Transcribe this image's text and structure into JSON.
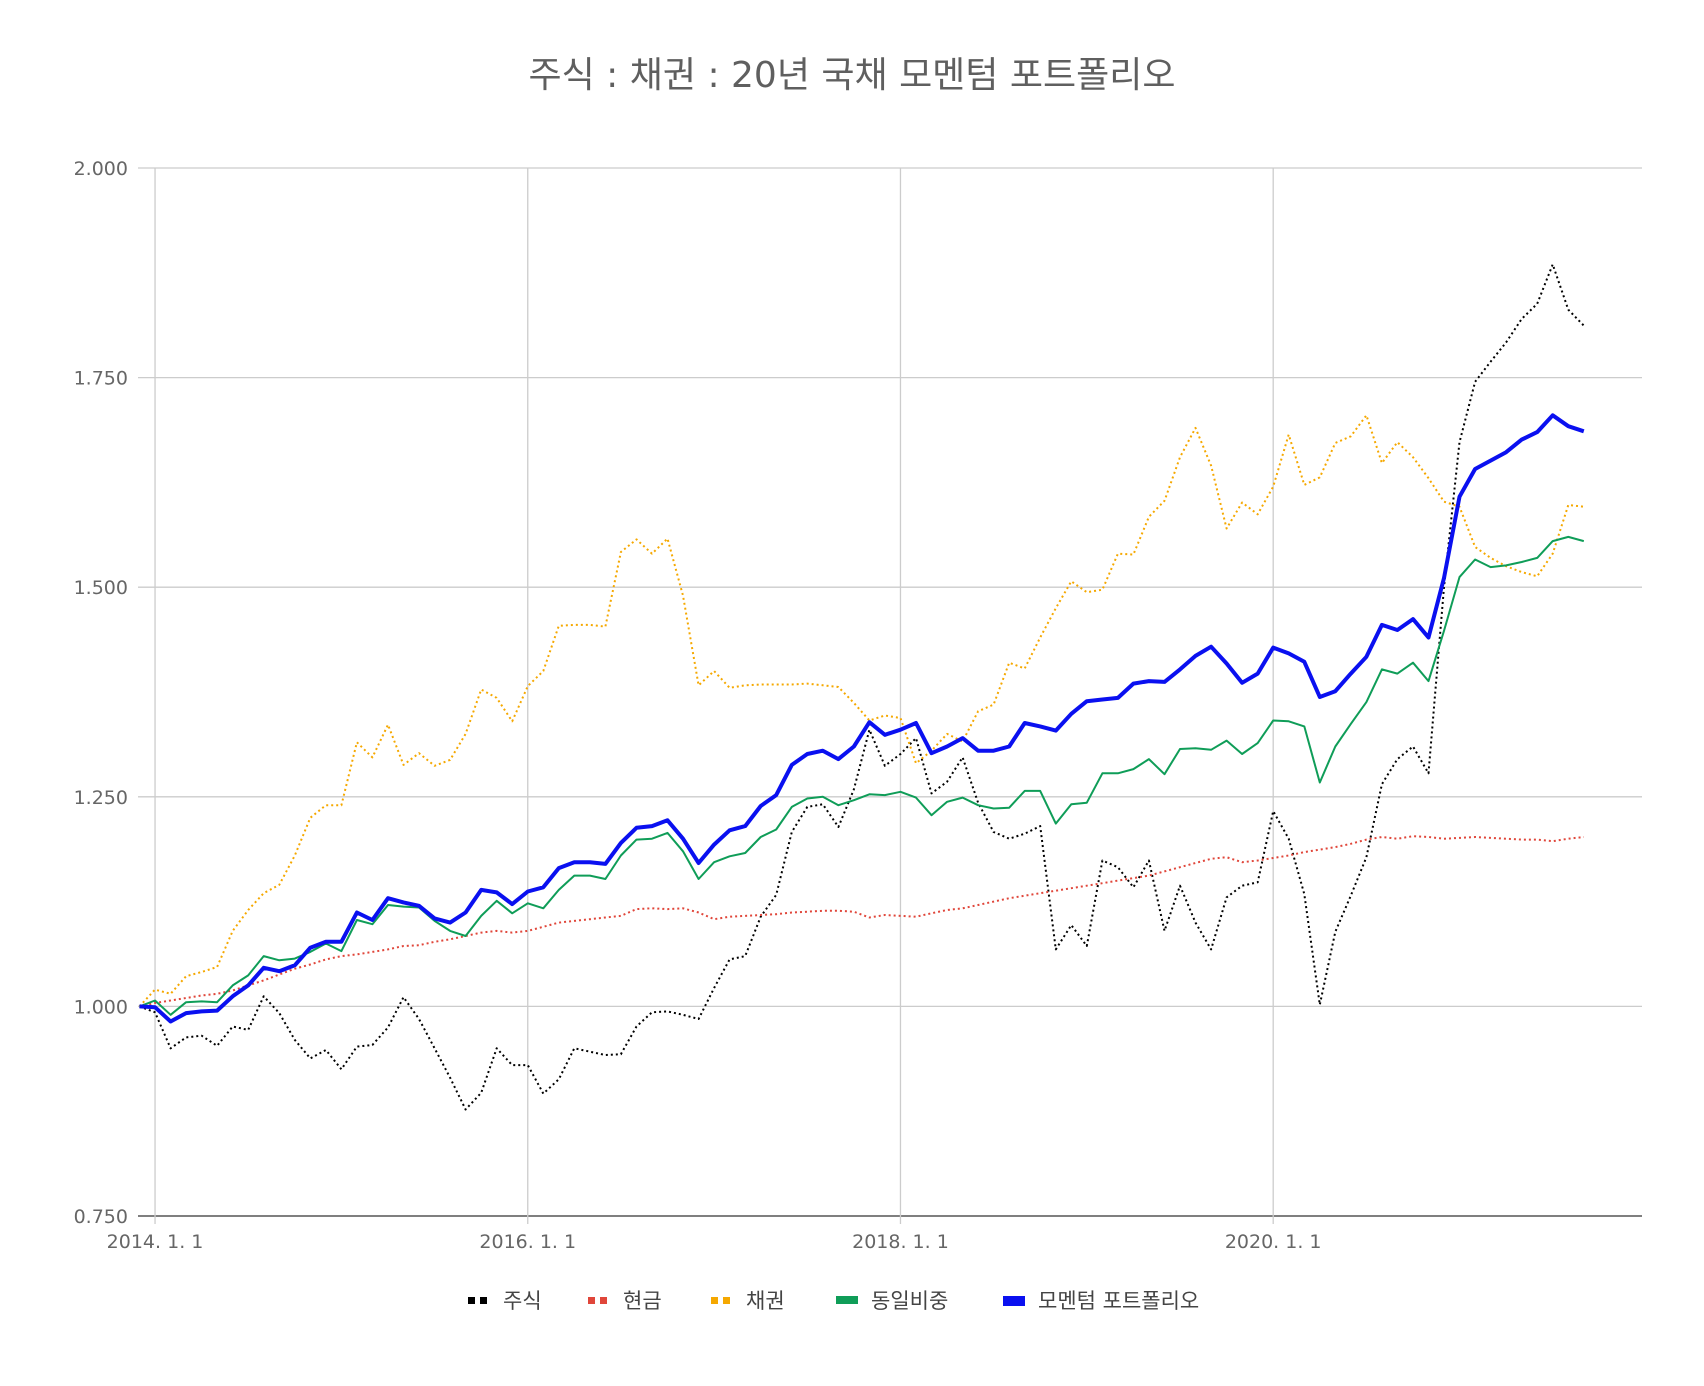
{
  "chart_data": {
    "type": "line",
    "title": "주식 : 채권 : 20년 국채 모멘텀 포트폴리오",
    "xlabel": "",
    "ylabel": "",
    "x_start": "2014-01",
    "x_interval": "month",
    "x_ticks": [
      {
        "label": "2014. 1. 1",
        "index": 1
      },
      {
        "label": "2016. 1. 1",
        "index": 25
      },
      {
        "label": "2018. 1. 1",
        "index": 49
      },
      {
        "label": "2020. 1. 1",
        "index": 73
      }
    ],
    "ylim": [
      0.75,
      2.0
    ],
    "y_ticks": [
      "0.750",
      "1.000",
      "1.250",
      "1.500",
      "1.750",
      "2.000"
    ],
    "grid": true,
    "legend_position": "bottom",
    "series": [
      {
        "name": "주식",
        "color": "#000000",
        "style": "dotted",
        "values": [
          1.0,
          0.993,
          0.95,
          0.963,
          0.965,
          0.953,
          0.976,
          0.972,
          1.012,
          0.992,
          0.96,
          0.938,
          0.948,
          0.925,
          0.952,
          0.954,
          0.975,
          1.011,
          0.985,
          0.95,
          0.915,
          0.877,
          0.897,
          0.95,
          0.93,
          0.93,
          0.896,
          0.913,
          0.95,
          0.946,
          0.942,
          0.943,
          0.976,
          0.993,
          0.994,
          0.99,
          0.985,
          1.022,
          1.056,
          1.06,
          1.107,
          1.133,
          1.208,
          1.238,
          1.241,
          1.214,
          1.259,
          1.33,
          1.287,
          1.301,
          1.32,
          1.254,
          1.268,
          1.297,
          1.243,
          1.208,
          1.2,
          1.206,
          1.215,
          1.068,
          1.097,
          1.072,
          1.174,
          1.166,
          1.142,
          1.174,
          1.09,
          1.144,
          1.1,
          1.068,
          1.13,
          1.144,
          1.148,
          1.233,
          1.2,
          1.134,
          1.002,
          1.089,
          1.132,
          1.178,
          1.265,
          1.295,
          1.31,
          1.278,
          1.5,
          1.673,
          1.745,
          1.769,
          1.792,
          1.82,
          1.838,
          1.885,
          1.831,
          1.812
        ]
      },
      {
        "name": "현금",
        "color": "#e0463a",
        "style": "dotted",
        "values": [
          1.0,
          1.004,
          1.007,
          1.01,
          1.013,
          1.015,
          1.019,
          1.025,
          1.031,
          1.038,
          1.045,
          1.05,
          1.056,
          1.06,
          1.062,
          1.065,
          1.068,
          1.072,
          1.073,
          1.077,
          1.08,
          1.084,
          1.088,
          1.09,
          1.088,
          1.09,
          1.095,
          1.1,
          1.102,
          1.104,
          1.106,
          1.108,
          1.116,
          1.117,
          1.116,
          1.117,
          1.112,
          1.104,
          1.107,
          1.108,
          1.109,
          1.11,
          1.112,
          1.113,
          1.114,
          1.114,
          1.113,
          1.106,
          1.109,
          1.108,
          1.107,
          1.111,
          1.115,
          1.117,
          1.121,
          1.125,
          1.129,
          1.132,
          1.135,
          1.138,
          1.141,
          1.144,
          1.147,
          1.15,
          1.153,
          1.156,
          1.161,
          1.166,
          1.171,
          1.176,
          1.178,
          1.172,
          1.174,
          1.177,
          1.18,
          1.184,
          1.187,
          1.19,
          1.194,
          1.199,
          1.202,
          1.2,
          1.203,
          1.202,
          1.2,
          1.201,
          1.202,
          1.201,
          1.2,
          1.199,
          1.199,
          1.197,
          1.2,
          1.202
        ]
      },
      {
        "name": "채권",
        "color": "#f5a800",
        "style": "dotted",
        "values": [
          1.0,
          1.02,
          1.015,
          1.036,
          1.041,
          1.047,
          1.09,
          1.115,
          1.135,
          1.145,
          1.18,
          1.225,
          1.24,
          1.24,
          1.315,
          1.297,
          1.336,
          1.288,
          1.302,
          1.287,
          1.294,
          1.325,
          1.378,
          1.368,
          1.34,
          1.382,
          1.4,
          1.454,
          1.455,
          1.455,
          1.453,
          1.542,
          1.557,
          1.54,
          1.558,
          1.49,
          1.383,
          1.4,
          1.38,
          1.383,
          1.384,
          1.384,
          1.384,
          1.385,
          1.383,
          1.381,
          1.362,
          1.341,
          1.347,
          1.344,
          1.29,
          1.305,
          1.325,
          1.316,
          1.352,
          1.36,
          1.41,
          1.403,
          1.44,
          1.475,
          1.507,
          1.494,
          1.497,
          1.54,
          1.539,
          1.584,
          1.603,
          1.655,
          1.69,
          1.645,
          1.57,
          1.601,
          1.587,
          1.62,
          1.682,
          1.622,
          1.631,
          1.672,
          1.68,
          1.705,
          1.648,
          1.673,
          1.655,
          1.63,
          1.602,
          1.596,
          1.548,
          1.535,
          1.525,
          1.518,
          1.513,
          1.54,
          1.598,
          1.596
        ]
      },
      {
        "name": "동일비중",
        "color": "#0f9d58",
        "style": "solid",
        "values": [
          1.0,
          1.007,
          0.99,
          1.005,
          1.006,
          1.005,
          1.025,
          1.037,
          1.06,
          1.055,
          1.057,
          1.065,
          1.075,
          1.066,
          1.103,
          1.098,
          1.121,
          1.119,
          1.118,
          1.102,
          1.09,
          1.084,
          1.108,
          1.126,
          1.111,
          1.123,
          1.117,
          1.139,
          1.156,
          1.156,
          1.152,
          1.18,
          1.199,
          1.2,
          1.207,
          1.185,
          1.152,
          1.172,
          1.179,
          1.183,
          1.202,
          1.211,
          1.238,
          1.248,
          1.25,
          1.24,
          1.246,
          1.253,
          1.252,
          1.256,
          1.249,
          1.228,
          1.244,
          1.249,
          1.24,
          1.236,
          1.237,
          1.257,
          1.257,
          1.218,
          1.241,
          1.243,
          1.278,
          1.278,
          1.283,
          1.295,
          1.277,
          1.307,
          1.308,
          1.306,
          1.317,
          1.301,
          1.314,
          1.341,
          1.34,
          1.334,
          1.267,
          1.31,
          1.337,
          1.363,
          1.402,
          1.397,
          1.41,
          1.388,
          1.448,
          1.512,
          1.533,
          1.524,
          1.526,
          1.53,
          1.535,
          1.555,
          1.56,
          1.555
        ]
      },
      {
        "name": "모멘텀 포트폴리오",
        "color": "#0a10f0",
        "style": "solid-bold",
        "values": [
          1.0,
          0.999,
          0.982,
          0.992,
          0.994,
          0.995,
          1.012,
          1.025,
          1.046,
          1.042,
          1.049,
          1.07,
          1.077,
          1.077,
          1.112,
          1.103,
          1.129,
          1.124,
          1.12,
          1.105,
          1.1,
          1.112,
          1.139,
          1.136,
          1.122,
          1.137,
          1.142,
          1.165,
          1.172,
          1.172,
          1.17,
          1.195,
          1.213,
          1.215,
          1.222,
          1.2,
          1.171,
          1.193,
          1.21,
          1.215,
          1.239,
          1.252,
          1.288,
          1.301,
          1.305,
          1.295,
          1.31,
          1.339,
          1.324,
          1.33,
          1.338,
          1.302,
          1.31,
          1.32,
          1.305,
          1.305,
          1.31,
          1.338,
          1.334,
          1.329,
          1.349,
          1.364,
          1.366,
          1.368,
          1.385,
          1.388,
          1.387,
          1.402,
          1.418,
          1.429,
          1.409,
          1.386,
          1.397,
          1.428,
          1.421,
          1.411,
          1.369,
          1.376,
          1.397,
          1.417,
          1.455,
          1.449,
          1.462,
          1.44,
          1.511,
          1.608,
          1.641,
          1.651,
          1.661,
          1.676,
          1.685,
          1.705,
          1.692,
          1.686
        ]
      }
    ]
  }
}
